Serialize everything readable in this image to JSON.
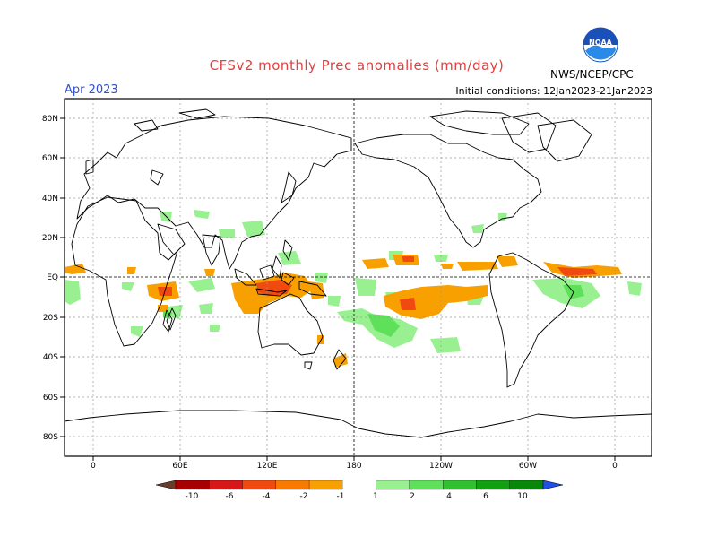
{
  "header": {
    "title": "CFSv2 monthly Prec anomalies (mm/day)",
    "month": "Apr 2023",
    "initial_conditions": "Initial conditions: 12Jan2023-21Jan2023",
    "agency": "NWS/NCEP/CPC",
    "logo_text": "NOAA"
  },
  "axes": {
    "lat_labels": [
      "80N",
      "60N",
      "40N",
      "20N",
      "EQ",
      "20S",
      "40S",
      "60S",
      "80S"
    ],
    "lon_labels": [
      "0",
      "60E",
      "120E",
      "180",
      "120W",
      "60W",
      "0"
    ]
  },
  "colorbar": {
    "tick_labels": [
      "-10",
      "-6",
      "-4",
      "-2",
      "-1",
      "1",
      "2",
      "4",
      "6",
      "10"
    ],
    "colors": [
      "#6b3c2a",
      "#a80000",
      "#d81818",
      "#f04a10",
      "#f87a00",
      "#f8a000",
      "#ffffff",
      "#98f090",
      "#5ee05a",
      "#30c030",
      "#10a010",
      "#088808",
      "#2050e8"
    ]
  }
}
